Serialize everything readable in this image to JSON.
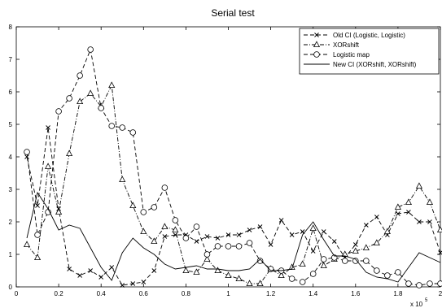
{
  "chart_data": {
    "type": "line",
    "title": "Serial test",
    "x_multiplier_label": "x 10",
    "x_multiplier_exponent": "5",
    "xlim": [
      0,
      2
    ],
    "ylim": [
      0,
      8
    ],
    "x_ticks": [
      0,
      0.2,
      0.4,
      0.6,
      0.8,
      1,
      1.2,
      1.4,
      1.6,
      1.8,
      2
    ],
    "x_tick_labels": [
      "0",
      "0.2",
      "0.4",
      "0.6",
      "0.8",
      "1",
      "1.2",
      "1.4",
      "1.6",
      "1.8",
      "2"
    ],
    "y_ticks": [
      0,
      1,
      2,
      3,
      4,
      5,
      6,
      7,
      8
    ],
    "y_tick_labels": [
      "0",
      "1",
      "2",
      "3",
      "4",
      "5",
      "6",
      "7",
      "8"
    ],
    "grid": false,
    "legend_position": "top-right",
    "x": [
      0.05,
      0.1,
      0.15,
      0.2,
      0.25,
      0.3,
      0.35,
      0.4,
      0.45,
      0.5,
      0.55,
      0.6,
      0.65,
      0.7,
      0.75,
      0.8,
      0.85,
      0.9,
      0.95,
      1.0,
      1.05,
      1.1,
      1.15,
      1.2,
      1.25,
      1.3,
      1.35,
      1.4,
      1.45,
      1.5,
      1.55,
      1.6,
      1.65,
      1.7,
      1.75,
      1.8,
      1.85,
      1.9,
      1.95,
      2.0
    ],
    "series": [
      {
        "name": "Old CI (Logistic, Logistic)",
        "marker": "x",
        "dash": "dashed",
        "values": [
          4.0,
          2.5,
          4.9,
          2.4,
          0.55,
          0.35,
          0.5,
          0.3,
          0.6,
          0.05,
          0.1,
          0.15,
          0.5,
          1.55,
          1.6,
          1.6,
          1.4,
          1.55,
          1.5,
          1.6,
          1.6,
          1.75,
          1.85,
          1.3,
          2.05,
          1.6,
          1.7,
          1.1,
          1.7,
          1.4,
          0.9,
          1.3,
          1.9,
          2.15,
          1.6,
          2.25,
          2.3,
          2.0,
          2.0,
          1.05
        ]
      },
      {
        "name": "XORshift",
        "marker": "triangle",
        "dash": "dashdot",
        "values": [
          1.3,
          0.9,
          3.7,
          2.3,
          4.1,
          5.7,
          5.95,
          5.55,
          6.2,
          3.3,
          2.5,
          1.7,
          1.4,
          1.85,
          1.75,
          0.5,
          0.45,
          0.85,
          0.5,
          0.35,
          0.25,
          0.1,
          0.1,
          0.55,
          0.35,
          0.6,
          0.7,
          1.8,
          0.65,
          0.85,
          1.0,
          1.1,
          1.2,
          1.35,
          1.7,
          2.45,
          2.6,
          3.1,
          2.6,
          1.75
        ]
      },
      {
        "name": "Logistic map",
        "marker": "circle",
        "dash": "dashed",
        "values": [
          4.15,
          1.6,
          2.3,
          5.4,
          5.8,
          6.5,
          7.3,
          5.5,
          4.95,
          4.9,
          4.75,
          2.3,
          2.45,
          3.05,
          2.05,
          1.5,
          1.85,
          1.0,
          1.25,
          1.25,
          1.25,
          1.35,
          0.8,
          0.55,
          0.5,
          0.25,
          0.15,
          0.4,
          0.85,
          0.9,
          0.8,
          0.8,
          0.8,
          0.5,
          0.35,
          0.45,
          0.1,
          0.05,
          0.1,
          0.1
        ]
      },
      {
        "name": "New CI (XORshift, XORshift)",
        "marker": "none",
        "dash": "solid",
        "values": [
          1.5,
          2.9,
          2.4,
          1.75,
          1.9,
          1.8,
          1.2,
          0.6,
          0.2,
          1.05,
          1.5,
          1.2,
          1.0,
          0.7,
          0.55,
          0.6,
          0.65,
          0.55,
          0.55,
          0.5,
          0.5,
          0.55,
          0.85,
          0.5,
          0.5,
          0.55,
          1.6,
          2.0,
          1.45,
          0.95,
          0.95,
          0.85,
          0.45,
          0.3,
          0.25,
          0.15,
          0.6,
          1.05,
          0.9,
          0.75
        ]
      }
    ]
  }
}
